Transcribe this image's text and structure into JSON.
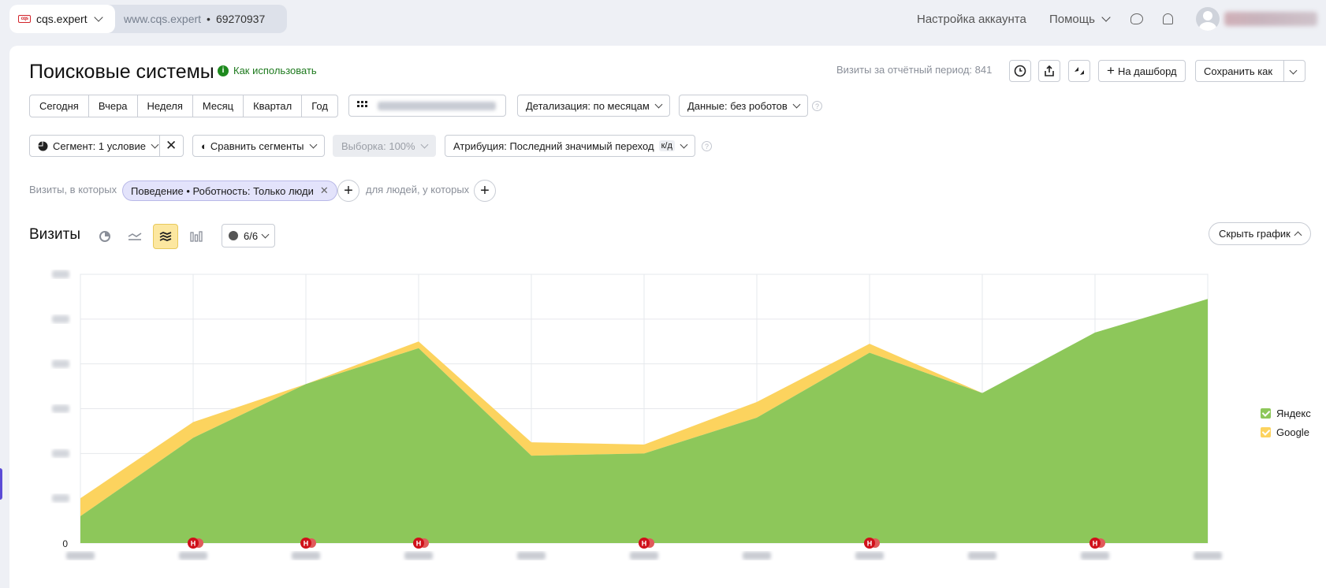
{
  "header": {
    "site_name": "cqs.expert",
    "site_url": "www.cqs.expert",
    "separator": "•",
    "counter_id": "69270937",
    "account_settings": "Настройка аккаунта",
    "help": "Помощь"
  },
  "page": {
    "title": "Поисковые системы",
    "how_to_use": "Как использовать",
    "visits_total_label": "Визиты за отчётный период: 841"
  },
  "toolbar": {
    "to_dashboard": "На дашборд",
    "save_as": "Сохранить как"
  },
  "periods": [
    "Сегодня",
    "Вчера",
    "Неделя",
    "Месяц",
    "Квартал",
    "Год"
  ],
  "controls": {
    "detail": "Детализация: по месяцам",
    "data": "Данные: без роботов",
    "segment": "Сегмент: 1 условие",
    "compare": "Сравнить сегменты",
    "sample": "Выборка: 100%",
    "attribution": "Атрибуция: Последний значимый переход",
    "attribution_badge": "к/д"
  },
  "filters": {
    "visits_where": "Визиты, в которых",
    "chip": "Поведение • Роботность: Только люди",
    "people_where": "для людей, у которых"
  },
  "chart_section": {
    "title": "Визиты",
    "series_count": "6/6",
    "hide_chart": "Скрыть график"
  },
  "chart_data": {
    "type": "area",
    "stacked": true,
    "x_count": 11,
    "ylim": [
      0,
      120
    ],
    "y_zero_label": "0",
    "gridlines": 6,
    "series": [
      {
        "name": "Яндекс",
        "color": "#8dc75a",
        "values": [
          12,
          47,
          71,
          87,
          39,
          40,
          56,
          85,
          67,
          94,
          109
        ]
      },
      {
        "name": "Google",
        "color": "#fcd35e",
        "values": [
          8,
          7,
          0,
          3,
          6,
          4,
          7,
          4,
          0,
          0,
          0
        ]
      }
    ],
    "markers": [
      {
        "x_index": 1,
        "label": "H"
      },
      {
        "x_index": 2,
        "label": "H"
      },
      {
        "x_index": 3,
        "label": "H"
      },
      {
        "x_index": 5,
        "label": "H"
      },
      {
        "x_index": 7,
        "label": "H"
      },
      {
        "x_index": 9,
        "label": "H"
      }
    ]
  }
}
